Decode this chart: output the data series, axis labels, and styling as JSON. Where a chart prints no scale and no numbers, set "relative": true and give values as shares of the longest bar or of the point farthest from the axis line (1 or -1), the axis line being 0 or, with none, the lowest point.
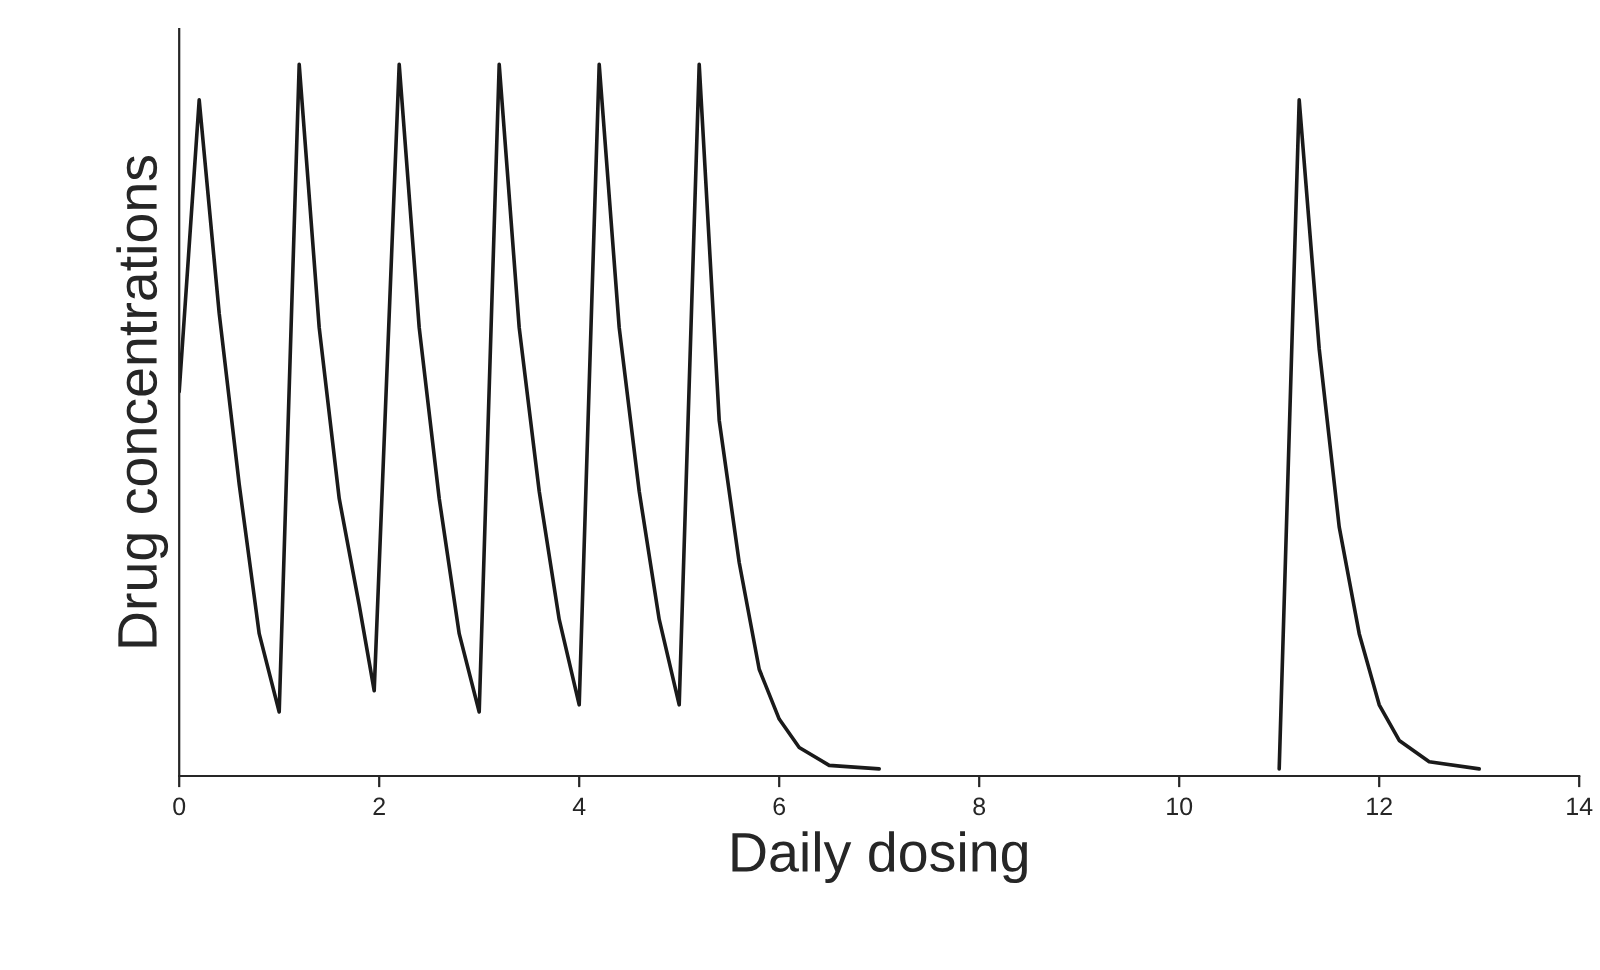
{
  "chart_data": {
    "type": "line",
    "relative": true,
    "xlabel": "Daily dosing",
    "ylabel": "Drug concentrations",
    "xlim": [
      0,
      14
    ],
    "xticks": [
      0,
      2,
      4,
      6,
      8,
      10,
      12,
      14
    ],
    "grid": false,
    "legend": false,
    "marker": "none",
    "line_style": "solid",
    "series": [
      {
        "color": "#1a1a1a",
        "x": [
          0,
          0.2,
          0.4,
          0.6,
          0.8,
          1.0,
          1.2,
          1.4,
          1.6,
          1.8,
          1.95,
          2.2,
          2.4,
          2.6,
          2.8,
          3.0,
          3.2,
          3.4,
          3.6,
          3.8,
          4.0,
          4.2,
          4.4,
          4.6,
          4.8,
          5.0,
          5.2,
          5.4,
          5.6,
          5.8,
          6.0,
          6.2,
          6.5,
          7.0,
          9.0,
          11.0,
          11.2,
          11.4,
          11.6,
          11.8,
          12.0,
          12.2,
          12.5,
          13.0
        ],
        "values": [
          0.54,
          0.95,
          0.65,
          0.41,
          0.2,
          0.09,
          1.0,
          0.63,
          0.39,
          0.24,
          0.12,
          1.0,
          0.63,
          0.39,
          0.2,
          0.09,
          1.0,
          0.63,
          0.4,
          0.22,
          0.1,
          1.0,
          0.63,
          0.4,
          0.22,
          0.1,
          1.0,
          0.5,
          0.3,
          0.15,
          0.08,
          0.04,
          0.015,
          0.01,
          null,
          0.01,
          0.95,
          0.6,
          0.35,
          0.2,
          0.1,
          0.05,
          0.02,
          0.01
        ]
      }
    ]
  }
}
